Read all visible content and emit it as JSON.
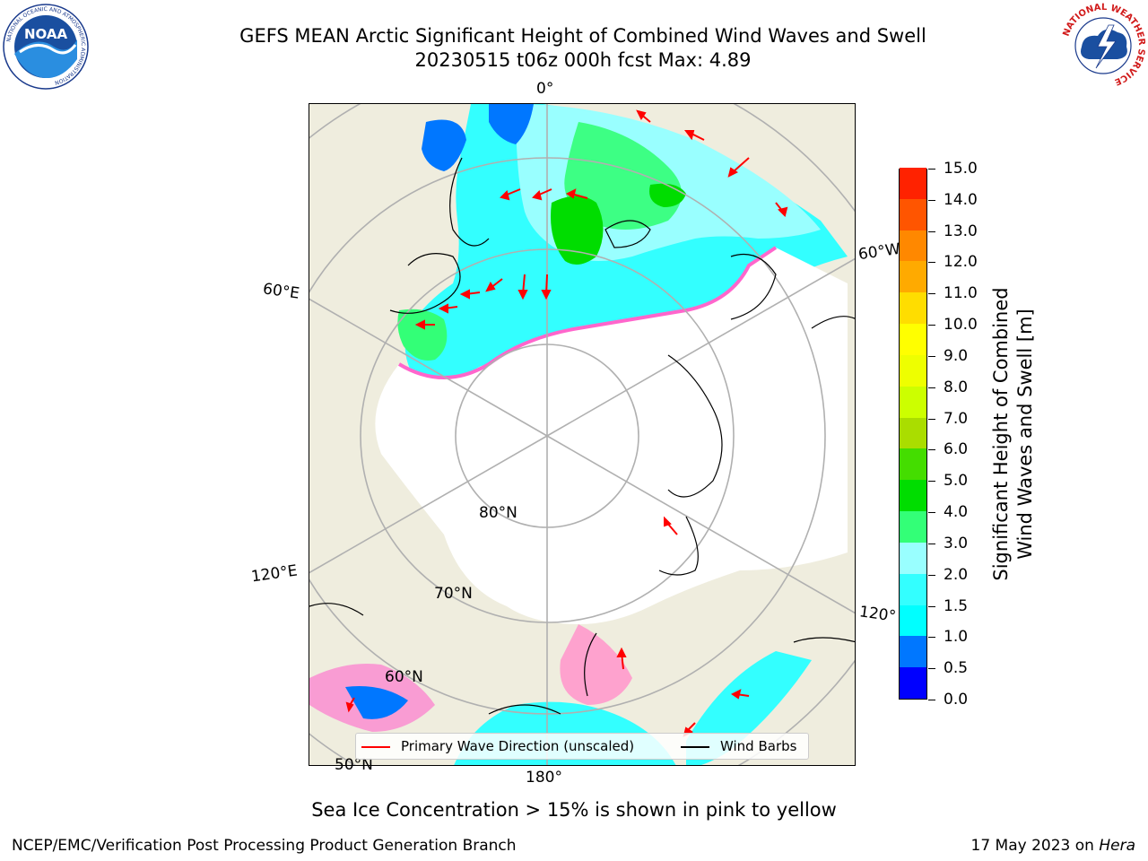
{
  "header": {
    "title_line1": "GEFS MEAN Arctic Significant Height of Combined Wind Waves and Swell",
    "title_line2": "20230515 t06z 000h fcst   Max: 4.89"
  },
  "logos": {
    "noaa_text": "NOAA",
    "noaa_ring": "NATIONAL OCEANIC AND ATMOSPHERIC ADMINISTRATION",
    "noaa_ring_bottom": "U.S. DEPARTMENT OF COMMERCE",
    "nws_ring": "NATIONAL WEATHER SERVICE"
  },
  "map": {
    "longitude_labels": {
      "top": "0°",
      "bottom": "180°",
      "left_upper": "60°E",
      "left_lower": "120°E",
      "right_upper": "60°W",
      "right_lower": "120°"
    },
    "latitude_labels": {
      "lat80": "80°N",
      "lat70": "70°N",
      "lat60": "60°N",
      "lat50": "50°N"
    },
    "colors": {
      "land": "#efedde",
      "sea_ice": "#ffffff",
      "ice_edge": "#ff66cc",
      "arrow": "#ff0000",
      "barb": "#000000",
      "grid": "#b0b0b0"
    }
  },
  "legend": {
    "primary_wave_label": "Primary Wave Direction (unscaled)",
    "primary_wave_color": "#ff0000",
    "wind_barbs_label": "Wind Barbs",
    "wind_barbs_color": "#000000"
  },
  "colorbar": {
    "title_line1": "Significant Height of Combined",
    "title_line2": "Wind Waves and Swell [m]",
    "ticks": [
      "0.0",
      "0.5",
      "1.0",
      "1.5",
      "2.0",
      "3.0",
      "4.0",
      "5.0",
      "6.0",
      "7.0",
      "8.0",
      "9.0",
      "10.0",
      "11.0",
      "12.0",
      "13.0",
      "14.0",
      "15.0"
    ],
    "colors": [
      "#0000ff",
      "#0077ff",
      "#00ffff",
      "#33ffff",
      "#99ffff",
      "#33ff77",
      "#00dd00",
      "#44dd00",
      "#aadd00",
      "#ccff00",
      "#eeff00",
      "#ffff00",
      "#ffdd00",
      "#ffaa00",
      "#ff8800",
      "#ff5500",
      "#ff2200"
    ]
  },
  "caption": "Sea Ice Concentration > 15% is shown in pink to yellow",
  "footer": {
    "left": "NCEP/EMC/Verification Post Processing Product Generation Branch",
    "right_date": "17 May 2023 on",
    "right_machine": "Hera"
  }
}
